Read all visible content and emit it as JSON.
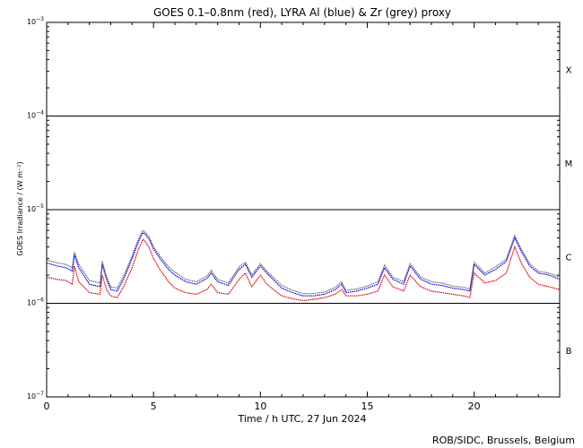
{
  "chart_data": {
    "type": "line",
    "title": "GOES 0.1–0.8nm (red), LYRA Al (blue) & Zr (grey) proxy",
    "xlabel": "Time / h UTC, 27 Jun 2024",
    "ylabel": "GOES Irradiance / (W m⁻²)",
    "footer": "ROB/SIDC, Brussels, Belgium",
    "xlim": [
      0,
      24
    ],
    "ylim": [
      1e-07,
      0.001
    ],
    "yscale": "log",
    "x_ticks": [
      0,
      5,
      10,
      15,
      20
    ],
    "y_ticks": [
      {
        "value": 1e-07,
        "mantissa": "10",
        "exp": "−7"
      },
      {
        "value": 1e-06,
        "mantissa": "10",
        "exp": "−6"
      },
      {
        "value": 1e-05,
        "mantissa": "10",
        "exp": "−5"
      },
      {
        "value": 0.0001,
        "mantissa": "10",
        "exp": "−4"
      },
      {
        "value": 0.001,
        "mantissa": "10",
        "exp": "−3"
      }
    ],
    "flare_class_lines": [
      1e-06,
      1e-05,
      0.0001
    ],
    "flare_classes": [
      {
        "label": "B",
        "at": 3.16e-07
      },
      {
        "label": "C",
        "at": 3.16e-06
      },
      {
        "label": "M",
        "at": 3.16e-05
      },
      {
        "label": "X",
        "at": 0.000316
      }
    ],
    "series": [
      {
        "color": "#0000dd",
        "x": [
          0,
          0.5,
          0.9,
          1.2,
          1.3,
          1.5,
          2.0,
          2.5,
          2.6,
          2.8,
          3.0,
          3.3,
          3.6,
          4.0,
          4.3,
          4.5,
          4.6,
          4.8,
          5.0,
          5.3,
          5.7,
          6.0,
          6.5,
          7.0,
          7.5,
          7.7,
          8.0,
          8.5,
          9.0,
          9.3,
          9.6,
          10.0,
          10.3,
          10.7,
          11.0,
          11.5,
          12.0,
          12.5,
          13.0,
          13.5,
          13.8,
          14.0,
          14.5,
          15.0,
          15.5,
          15.8,
          16.2,
          16.7,
          17.0,
          17.5,
          18.0,
          18.5,
          19.0,
          19.5,
          19.8,
          20.0,
          20.5,
          21.0,
          21.5,
          21.9,
          22.2,
          22.6,
          23.0,
          23.5,
          24.0
        ],
        "y": [
          2.7e-06,
          2.5e-06,
          2.4e-06,
          2.2e-06,
          3.3e-06,
          2.4e-06,
          1.6e-06,
          1.5e-06,
          2.6e-06,
          1.8e-06,
          1.4e-06,
          1.35e-06,
          1.8e-06,
          3e-06,
          4.6e-06,
          5.7e-06,
          5.5e-06,
          4.8e-06,
          3.8e-06,
          3e-06,
          2.3e-06,
          2e-06,
          1.7e-06,
          1.6e-06,
          1.85e-06,
          2.1e-06,
          1.7e-06,
          1.55e-06,
          2.3e-06,
          2.6e-06,
          1.9e-06,
          2.5e-06,
          2.1e-06,
          1.7e-06,
          1.45e-06,
          1.3e-06,
          1.2e-06,
          1.2e-06,
          1.25e-06,
          1.4e-06,
          1.6e-06,
          1.3e-06,
          1.35e-06,
          1.45e-06,
          1.6e-06,
          2.4e-06,
          1.8e-06,
          1.6e-06,
          2.5e-06,
          1.8e-06,
          1.6e-06,
          1.55e-06,
          1.45e-06,
          1.4e-06,
          1.35e-06,
          2.6e-06,
          2e-06,
          2.3e-06,
          2.8e-06,
          5e-06,
          3.6e-06,
          2.5e-06,
          2.1e-06,
          2e-06,
          1.8e-06
        ]
      },
      {
        "color": "#dd0000",
        "x": [
          0,
          0.5,
          0.9,
          1.2,
          1.3,
          1.5,
          2.0,
          2.5,
          2.6,
          2.8,
          3.0,
          3.3,
          3.6,
          4.0,
          4.3,
          4.5,
          4.6,
          4.8,
          5.0,
          5.3,
          5.7,
          6.0,
          6.5,
          7.0,
          7.5,
          7.7,
          8.0,
          8.5,
          9.0,
          9.3,
          9.6,
          10.0,
          10.3,
          10.7,
          11.0,
          11.5,
          12.0,
          12.5,
          13.0,
          13.5,
          13.8,
          14.0,
          14.5,
          15.0,
          15.5,
          15.8,
          16.2,
          16.7,
          17.0,
          17.5,
          18.0,
          18.5,
          19.0,
          19.5,
          19.8,
          20.0,
          20.5,
          21.0,
          21.5,
          21.9,
          22.2,
          22.6,
          23.0,
          23.5,
          24.0
        ],
        "y": [
          1.9e-06,
          1.8e-06,
          1.75e-06,
          1.6e-06,
          2.5e-06,
          1.7e-06,
          1.3e-06,
          1.25e-06,
          2e-06,
          1.4e-06,
          1.2e-06,
          1.15e-06,
          1.5e-06,
          2.4e-06,
          3.8e-06,
          4.8e-06,
          4.6e-06,
          3.9e-06,
          3e-06,
          2.3e-06,
          1.7e-06,
          1.45e-06,
          1.3e-06,
          1.25e-06,
          1.4e-06,
          1.6e-06,
          1.3e-06,
          1.25e-06,
          1.8e-06,
          2.1e-06,
          1.5e-06,
          2e-06,
          1.6e-06,
          1.35e-06,
          1.2e-06,
          1.12e-06,
          1.07e-06,
          1.1e-06,
          1.15e-06,
          1.25e-06,
          1.4e-06,
          1.2e-06,
          1.2e-06,
          1.25e-06,
          1.35e-06,
          2e-06,
          1.5e-06,
          1.35e-06,
          2e-06,
          1.5e-06,
          1.35e-06,
          1.3e-06,
          1.25e-06,
          1.2e-06,
          1.15e-06,
          2.1e-06,
          1.65e-06,
          1.75e-06,
          2.1e-06,
          4e-06,
          2.7e-06,
          1.9e-06,
          1.6e-06,
          1.5e-06,
          1.4e-06
        ]
      },
      {
        "color": "#666666",
        "x": [
          0,
          0.5,
          0.9,
          1.2,
          1.3,
          1.5,
          2.0,
          2.5,
          2.6,
          2.8,
          3.0,
          3.3,
          3.6,
          4.0,
          4.3,
          4.5,
          4.6,
          4.8,
          5.0,
          5.3,
          5.7,
          6.0,
          6.5,
          7.0,
          7.5,
          7.7,
          8.0,
          8.5,
          9.0,
          9.3,
          9.6,
          10.0,
          10.3,
          10.7,
          11.0,
          11.5,
          12.0,
          12.5,
          13.0,
          13.5,
          13.8,
          14.0,
          14.5,
          15.0,
          15.5,
          15.8,
          16.2,
          16.7,
          17.0,
          17.5,
          18.0,
          18.5,
          19.0,
          19.5,
          19.8,
          20.0,
          20.5,
          21.0,
          21.5,
          21.9,
          22.2,
          22.6,
          23.0,
          23.5,
          24.0
        ],
        "y": [
          2.9e-06,
          2.7e-06,
          2.6e-06,
          2.4e-06,
          3.5e-06,
          2.6e-06,
          1.75e-06,
          1.65e-06,
          2.8e-06,
          1.95e-06,
          1.5e-06,
          1.45e-06,
          1.95e-06,
          3.2e-06,
          4.9e-06,
          6e-06,
          5.8e-06,
          5.1e-06,
          4e-06,
          3.2e-06,
          2.45e-06,
          2.15e-06,
          1.8e-06,
          1.7e-06,
          1.95e-06,
          2.25e-06,
          1.8e-06,
          1.65e-06,
          2.45e-06,
          2.75e-06,
          2e-06,
          2.65e-06,
          2.2e-06,
          1.8e-06,
          1.55e-06,
          1.38e-06,
          1.27e-06,
          1.27e-06,
          1.32e-06,
          1.48e-06,
          1.7e-06,
          1.38e-06,
          1.42e-06,
          1.53e-06,
          1.7e-06,
          2.55e-06,
          1.9e-06,
          1.7e-06,
          2.65e-06,
          1.9e-06,
          1.7e-06,
          1.64e-06,
          1.53e-06,
          1.48e-06,
          1.42e-06,
          2.75e-06,
          2.1e-06,
          2.45e-06,
          2.95e-06,
          5.3e-06,
          3.8e-06,
          2.65e-06,
          2.2e-06,
          2.1e-06,
          1.9e-06
        ]
      }
    ]
  }
}
